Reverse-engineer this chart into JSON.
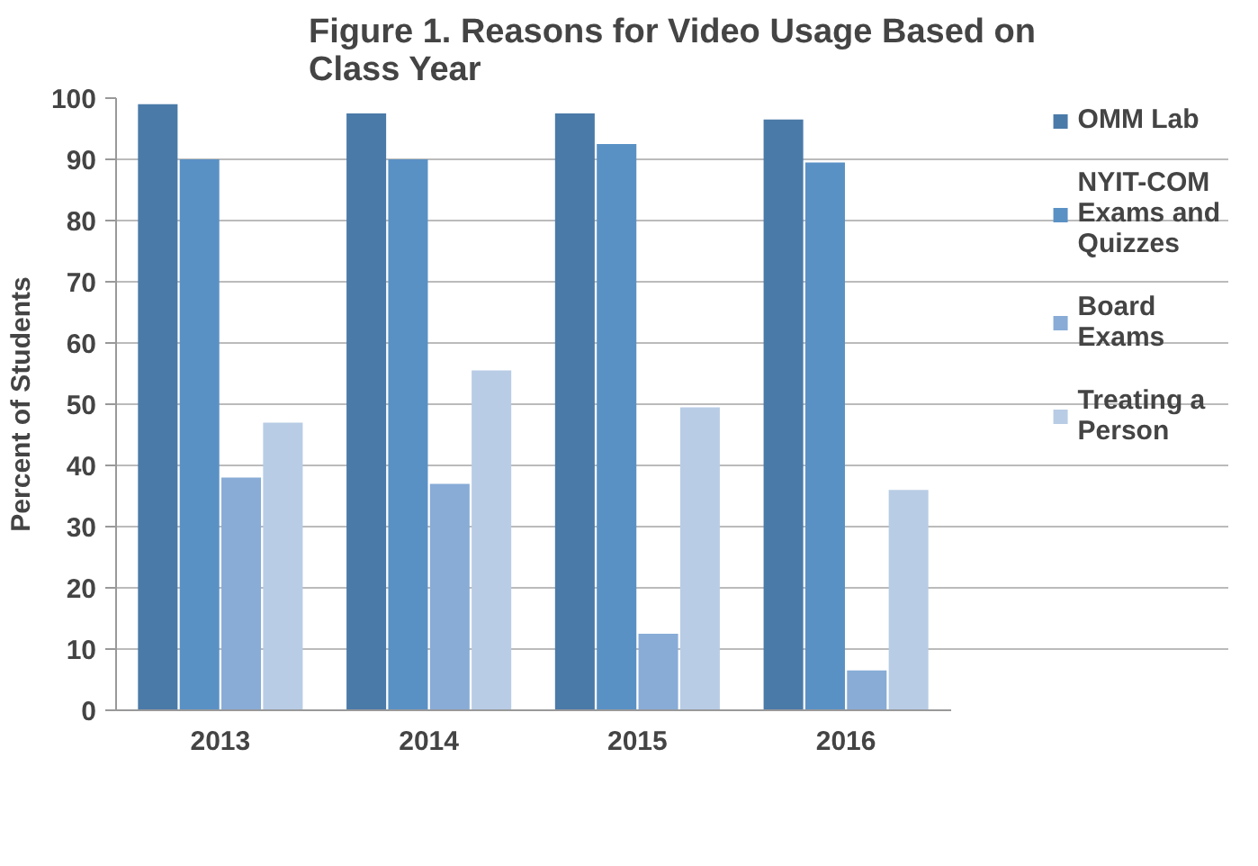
{
  "chart_data": {
    "type": "bar",
    "title": "Figure 1. Reasons for Video Usage Based on Class Year",
    "ylabel": "Percent of Students",
    "categories": [
      "2013",
      "2014",
      "2015",
      "2016"
    ],
    "series": [
      {
        "name": "OMM Lab",
        "color": "#4a7aa8",
        "values": [
          99,
          97.5,
          97.5,
          96.5
        ]
      },
      {
        "name": "NYIT-COM Exams and Quizzes",
        "color": "#5a91c5",
        "values": [
          90,
          90,
          92.5,
          89.5
        ]
      },
      {
        "name": "Board Exams",
        "color": "#88acd6",
        "values": [
          38,
          37,
          12.5,
          6.5
        ]
      },
      {
        "name": "Treating a Person",
        "color": "#b8cce5",
        "values": [
          47,
          55.5,
          49.5,
          36
        ]
      }
    ],
    "ylim": [
      0,
      100
    ],
    "yticks": [
      0,
      10,
      20,
      30,
      40,
      50,
      60,
      70,
      80,
      90,
      100
    ],
    "grid": "y",
    "legend": "right"
  }
}
